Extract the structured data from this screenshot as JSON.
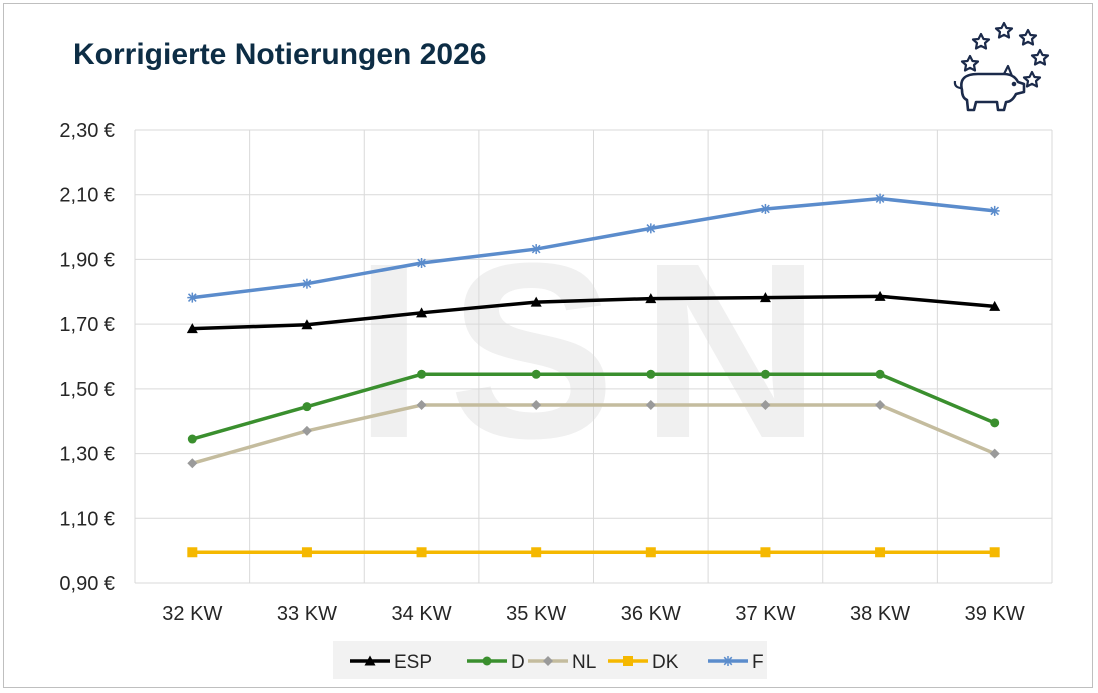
{
  "chart_data": {
    "type": "line",
    "title": "Korrigierte Notierungen 2026",
    "categories": [
      "32 KW",
      "33 KW",
      "34 KW",
      "35 KW",
      "36 KW",
      "37 KW",
      "38 KW",
      "39 KW"
    ],
    "y_ticks": [
      "0,90 €",
      "1,10 €",
      "1,30 €",
      "1,50 €",
      "1,70 €",
      "1,90 €",
      "2,10 €",
      "2,30 €"
    ],
    "ylim": [
      0.9,
      2.3
    ],
    "grid": true,
    "legend_position": "bottom",
    "watermark": "ISN",
    "series": [
      {
        "name": "ESP",
        "color": "#000000",
        "marker": "triangle",
        "values": [
          1.686,
          1.698,
          1.735,
          1.768,
          1.779,
          1.782,
          1.786,
          1.755
        ]
      },
      {
        "name": "D",
        "color": "#3a8f2e",
        "marker": "circle",
        "values": [
          1.345,
          1.445,
          1.545,
          1.545,
          1.545,
          1.545,
          1.545,
          1.395
        ]
      },
      {
        "name": "NL",
        "color": "#c4bc9e",
        "marker": "diamond",
        "values": [
          1.27,
          1.37,
          1.45,
          1.45,
          1.45,
          1.45,
          1.45,
          1.3
        ]
      },
      {
        "name": "DK",
        "color": "#f5b800",
        "marker": "square",
        "values": [
          0.995,
          0.995,
          0.995,
          0.995,
          0.995,
          0.995,
          0.995,
          0.995
        ]
      },
      {
        "name": "F",
        "color": "#5b8ccc",
        "marker": "star",
        "values": [
          1.782,
          1.825,
          1.889,
          1.932,
          1.996,
          2.056,
          2.088,
          2.05
        ]
      }
    ]
  }
}
